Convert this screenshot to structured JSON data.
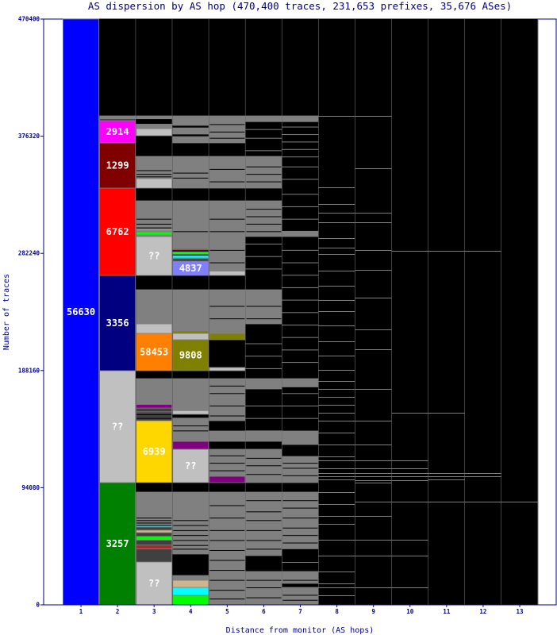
{
  "chart_data": {
    "type": "bar",
    "stacked": true,
    "title": "AS dispersion by AS hop (470,400 traces, 231,653 prefixes, 35,676 ASes)",
    "xlabel": "Distance from monitor (AS hops)",
    "ylabel": "Number of traces",
    "ylim": [
      0,
      470400
    ],
    "yticks": [
      "0",
      "94080",
      "188160",
      "282240",
      "376320",
      "470400"
    ],
    "ytick_values": [
      0,
      94080,
      188160,
      282240,
      376320,
      470400
    ],
    "categories": [
      "1",
      "2",
      "3",
      "4",
      "5",
      "6",
      "7",
      "8",
      "9",
      "10",
      "11",
      "12",
      "13"
    ],
    "colors": {
      "frame": "#000080",
      "background": "#000000",
      "other": "#808080",
      "dark": "#404040",
      "unknown": "#c0c0c0"
    },
    "columns": [
      {
        "segments": [
          [
            0,
            470400,
            "#0000ff",
            "56630"
          ]
        ]
      },
      {
        "segments": [
          [
            0,
            98160,
            "#008000",
            "3257"
          ],
          [
            98160,
            188030,
            "#c0c0c0",
            "??"
          ],
          [
            188030,
            264520,
            "#000080",
            "3356"
          ],
          [
            264520,
            334640,
            "#ff0000",
            "6762"
          ],
          [
            334640,
            370970,
            "#800000",
            "1299"
          ],
          [
            370970,
            388810,
            "#ff00ff",
            "2914"
          ],
          [
            388810,
            390300,
            "#404040",
            ""
          ],
          [
            390300,
            392640,
            "#808080",
            ""
          ]
        ]
      },
      {
        "segments": [
          [
            0,
            34420,
            "#c0c0c0",
            "??"
          ],
          [
            34420,
            45000,
            "#404040",
            ""
          ],
          [
            45000,
            48000,
            "#a52a2a",
            ""
          ],
          [
            48000,
            52000,
            "#404040",
            ""
          ],
          [
            52000,
            55000,
            "#00ff00",
            ""
          ],
          [
            55000,
            58000,
            "#404040",
            ""
          ],
          [
            58000,
            60000,
            "#d2b48c",
            ""
          ],
          [
            60000,
            62500,
            "#404040",
            ""
          ],
          [
            62500,
            64000,
            "#00ffff",
            ""
          ],
          [
            64000,
            90510,
            "#808080",
            ""
          ],
          [
            98160,
            147880,
            "#ffd700",
            "6939"
          ],
          [
            147880,
            155000,
            "#404040",
            ""
          ],
          [
            155000,
            158000,
            "#404040",
            ""
          ],
          [
            158000,
            161000,
            "#800080",
            ""
          ],
          [
            161000,
            181660,
            "#808080",
            ""
          ],
          [
            188030,
            218000,
            "#ff8000",
            "58453"
          ],
          [
            218000,
            225640,
            "#c0c0c0",
            ""
          ],
          [
            225640,
            253050,
            "#808080",
            ""
          ],
          [
            264520,
            295760,
            "#c0c0c0",
            "??"
          ],
          [
            295760,
            297000,
            "#808080",
            ""
          ],
          [
            297000,
            299500,
            "#00ff00",
            ""
          ],
          [
            299500,
            300500,
            "#808080",
            ""
          ],
          [
            300500,
            301500,
            "#d2b48c",
            ""
          ],
          [
            301500,
            324440,
            "#808080",
            ""
          ],
          [
            334640,
            342290,
            "#c0c0c0",
            ""
          ],
          [
            342290,
            360130,
            "#808080",
            ""
          ],
          [
            376710,
            382440,
            "#c0c0c0",
            ""
          ],
          [
            382440,
            386000,
            "#808080",
            ""
          ],
          [
            390300,
            392640,
            "#808080",
            ""
          ]
        ],
        "blines": [
          64000,
          66000,
          68000,
          70000,
          150000,
          153000,
          303000,
          306000,
          310000,
          344000,
          346000,
          349000
        ]
      },
      {
        "segments": [
          [
            0,
            7650,
            "#00ff00",
            ""
          ],
          [
            7650,
            14020,
            "#00ffff",
            ""
          ],
          [
            14020,
            19760,
            "#d2b48c",
            ""
          ],
          [
            19760,
            23580,
            "#808080",
            ""
          ],
          [
            40800,
            90510,
            "#808080",
            ""
          ],
          [
            98160,
            124930,
            "#c0c0c0",
            "??"
          ],
          [
            124930,
            131300,
            "#800080",
            ""
          ],
          [
            131300,
            150000,
            "#808080",
            ""
          ],
          [
            153000,
            156000,
            "#c0c0c0",
            ""
          ],
          [
            156000,
            181660,
            "#808080",
            ""
          ],
          [
            188030,
            212890,
            "#808000",
            "9808"
          ],
          [
            212890,
            217990,
            "#c0c0c0",
            ""
          ],
          [
            217990,
            219900,
            "#808000",
            ""
          ],
          [
            219900,
            253050,
            "#808080",
            ""
          ],
          [
            264520,
            275900,
            "#8080ff",
            "4837"
          ],
          [
            275900,
            278000,
            "#404040",
            ""
          ],
          [
            278500,
            280500,
            "#00ffff",
            ""
          ],
          [
            281500,
            283500,
            "#00ff00",
            ""
          ],
          [
            285000,
            286000,
            "#a52a2a",
            ""
          ],
          [
            286000,
            324440,
            "#808080",
            ""
          ],
          [
            334640,
            360130,
            "#808080",
            ""
          ],
          [
            370970,
            376000,
            "#808080",
            ""
          ],
          [
            378000,
            383000,
            "#808080",
            ""
          ],
          [
            385000,
            392640,
            "#808080",
            ""
          ]
        ],
        "blines": [
          45000,
          48000,
          52000,
          56000,
          60000,
          64000,
          68000,
          140000,
          144000,
          300000,
          343000,
          347000
        ]
      },
      {
        "segments": [
          [
            0,
            90510,
            "#808080",
            ""
          ],
          [
            98160,
            103260,
            "#800080",
            ""
          ],
          [
            103260,
            124930,
            "#808080",
            ""
          ],
          [
            131300,
            139590,
            "#808080",
            ""
          ],
          [
            147880,
            181660,
            "#808080",
            ""
          ],
          [
            188030,
            190600,
            "#c0c0c0",
            ""
          ],
          [
            212890,
            217990,
            "#808000",
            ""
          ],
          [
            217990,
            253050,
            "#808080",
            ""
          ],
          [
            264520,
            268000,
            "#c0c0c0",
            ""
          ],
          [
            268000,
            324440,
            "#808080",
            ""
          ],
          [
            334640,
            360130,
            "#808080",
            ""
          ],
          [
            370970,
            392640,
            "#808080",
            ""
          ]
        ],
        "blines": [
          5000,
          12000,
          20000,
          28000,
          36000,
          44000,
          52000,
          60000,
          70000,
          80000,
          108000,
          114000,
          120000,
          152000,
          160000,
          170000,
          176000,
          230000,
          240000,
          275000,
          285000,
          300000,
          310000,
          340000,
          350000,
          375000,
          380000,
          386000
        ]
      },
      {
        "segments": [
          [
            0,
            26770,
            "#808080",
            ""
          ],
          [
            39520,
            90510,
            "#808080",
            ""
          ],
          [
            98160,
            124930,
            "#808080",
            ""
          ],
          [
            131300,
            139590,
            "#808080",
            ""
          ],
          [
            173370,
            181660,
            "#808080",
            ""
          ],
          [
            225640,
            253050,
            "#808080",
            ""
          ],
          [
            295760,
            324440,
            "#808080",
            ""
          ],
          [
            334640,
            360130,
            "#808080",
            ""
          ],
          [
            388000,
            392640,
            "#808080",
            ""
          ]
        ],
        "blines": [
          6000,
          14000,
          20000,
          45000,
          52000,
          60000,
          68000,
          75000,
          84000,
          105000,
          112000,
          118000,
          230000,
          240000,
          300000,
          306000,
          312000,
          318000,
          340000,
          346000,
          352000
        ],
        "lines": [
          140000,
          150000,
          160000,
          190000,
          200000,
          210000,
          270000,
          280000,
          290000,
          365000,
          375000,
          382000
        ]
      },
      {
        "segments": [
          [
            0,
            14020,
            "#808080",
            ""
          ],
          [
            17210,
            26770,
            "#808080",
            ""
          ],
          [
            45000,
            90510,
            "#808080",
            ""
          ],
          [
            98160,
            119190,
            "#808080",
            ""
          ],
          [
            128750,
            139590,
            "#808080",
            ""
          ],
          [
            175000,
            181660,
            "#808080",
            ""
          ],
          [
            295760,
            300000,
            "#808080",
            ""
          ],
          [
            388000,
            392640,
            "#808080",
            ""
          ]
        ],
        "blines": [
          4000,
          8000,
          20000,
          50000,
          56000,
          62000,
          70000,
          78000,
          84000,
          104000,
          110000,
          114000
        ],
        "lines": [
          34420,
          150000,
          160000,
          170000,
          195000,
          205000,
          215000,
          225000,
          235000,
          245000,
          255000,
          265000,
          275000,
          285000,
          310000,
          320000,
          330000,
          342000,
          352000,
          360000,
          366000,
          372000,
          378000,
          384000
        ]
      },
      {
        "lines": [
          7650,
          14020,
          17210,
          26770,
          39520,
          52270,
          65010,
          71390,
          80950,
          90510,
          100710,
          103260,
          105810,
          109630,
          116010,
          119190,
          128750,
          138320,
          147880,
          154250,
          160620,
          167000,
          173370,
          179750,
          188670,
          200140,
          211620,
          224360,
          235840,
          244760,
          256240,
          268350,
          281730,
          286830,
          294480,
          307230,
          314880,
          321890,
          335270,
          392640
        ]
      },
      {
        "lines": [
          14020,
          39520,
          52270,
          71390,
          82860,
          98160,
          100070,
          103260,
          105810,
          109630,
          116010,
          128750,
          147880,
          173370,
          205240,
          221180,
          246680,
          268980,
          284920,
          307230,
          314880,
          350570,
          392640
        ]
      },
      {
        "lines": [
          14020,
          39520,
          52270,
          82860,
          100070,
          103260,
          105810,
          109630,
          116010,
          154250,
          284280
        ]
      },
      {
        "lines": [
          82860,
          100710,
          103260,
          105810,
          154250,
          284280
        ]
      },
      {
        "lines": [
          82860,
          103260,
          105810,
          284280
        ]
      },
      {
        "lines": [
          82860
        ]
      }
    ]
  }
}
